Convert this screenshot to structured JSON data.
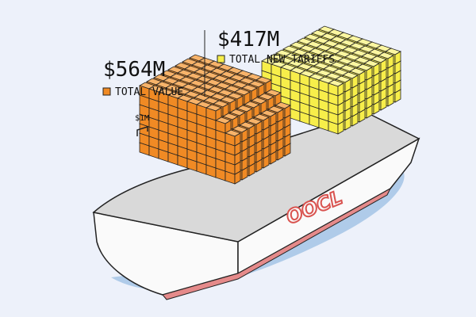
{
  "labels": {
    "total_value": {
      "amount": "$564M",
      "label": "TOTAL VALUE"
    },
    "tariffs": {
      "amount": "$417M",
      "label": "TOTAL NEW TARIFFS"
    },
    "unit": "$1M"
  },
  "ship": {
    "name": "OOCL"
  }
}
